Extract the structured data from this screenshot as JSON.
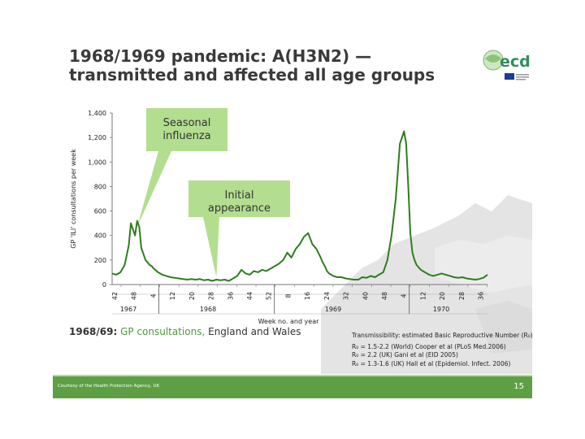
{
  "slide": {
    "title_line1": "1968/1969 pandemic: A(H3N2) —",
    "title_line2": "transmitted and affected all age groups",
    "logo_text": "ecdc",
    "caption_part1": "1968/69:",
    "caption_part2": " GP consultations,",
    "caption_part3": " England and Wales",
    "transmissibility_heading": "Transmissibility: estimated Basic Reproductive Number (R₀)",
    "transmissibility_lines": [
      "R₀ = 1.5-2.2 (World) Cooper et al (PLoS Med.2006)",
      "R₀ = 2.2 (UK) Gani et al (EID 2005)",
      "R₀ = 1.3-1.6 (UK) Hall et al (Epidemiol. Infect. 2006)"
    ],
    "footer_left": "Courtesy of the Health Protection Agency, UK",
    "page_number": "15",
    "colors": {
      "green": "#5da044",
      "line": "#2e7d1e",
      "callout": "#b3de8f"
    }
  },
  "chart_data": {
    "type": "line",
    "ylabel": "GP 'ILI' consultations per week",
    "xlabel": "Week no. and year",
    "ylim": [
      0,
      1400
    ],
    "yticks": [
      "0",
      "200",
      "400",
      "600",
      "800",
      "1,000",
      "1,200",
      "1,400"
    ],
    "ytick_values": [
      0,
      200,
      400,
      600,
      800,
      1000,
      1200,
      1400
    ],
    "xticks": [
      "42",
      "48",
      "4",
      "12",
      "20",
      "28",
      "36",
      "44",
      "52",
      "8",
      "16",
      "24",
      "32",
      "40",
      "48",
      "4",
      "12",
      "20",
      "28",
      "36"
    ],
    "years": [
      {
        "label": "1967",
        "at_week": 0
      },
      {
        "label": "1968",
        "at_week": 40
      },
      {
        "label": "1969",
        "at_week": 92
      },
      {
        "label": "1970",
        "at_week": 144
      }
    ],
    "year_dividers_after_tick": [
      2,
      8,
      15
    ],
    "annotations": [
      {
        "line1": "Seasonal",
        "line2": "influenza",
        "points_to_week": 12
      },
      {
        "line1": "Initial",
        "line2": "appearance",
        "points_to_week": 50
      }
    ],
    "series": [
      {
        "x": [
          0,
          2,
          4,
          6,
          8,
          9,
          10,
          11,
          12,
          13,
          14,
          15,
          16,
          17,
          18,
          19,
          20,
          22,
          24,
          26,
          28,
          30,
          32,
          34,
          36,
          38,
          40,
          42,
          44,
          46,
          48,
          50,
          52,
          54,
          56,
          58,
          60,
          62,
          64,
          66,
          68,
          70,
          72,
          74,
          76,
          78,
          80,
          82,
          84,
          86,
          88,
          90,
          92,
          94,
          96,
          98,
          100,
          101,
          102,
          103,
          104,
          105,
          106,
          108,
          110,
          112,
          114,
          116,
          118,
          120,
          122,
          124,
          126,
          128,
          130,
          132,
          134,
          136,
          138,
          140,
          141,
          142,
          143,
          144,
          145,
          146,
          147,
          148,
          150,
          152,
          154,
          156,
          158,
          160,
          162,
          164,
          166,
          168,
          170,
          172,
          174,
          176,
          178,
          180
        ],
        "y": [
          90,
          80,
          100,
          160,
          320,
          500,
          450,
          400,
          520,
          470,
          300,
          250,
          200,
          180,
          160,
          150,
          130,
          100,
          80,
          70,
          60,
          55,
          50,
          45,
          40,
          45,
          40,
          45,
          35,
          40,
          30,
          40,
          35,
          40,
          30,
          50,
          70,
          120,
          90,
          80,
          110,
          100,
          120,
          110,
          130,
          150,
          170,
          200,
          260,
          220,
          290,
          330,
          390,
          420,
          330,
          290,
          220,
          180,
          150,
          110,
          90,
          80,
          70,
          60,
          60,
          50,
          45,
          40,
          40,
          60,
          55,
          70,
          60,
          80,
          100,
          200,
          400,
          700,
          1150,
          1250,
          1150,
          800,
          420,
          260,
          200,
          160,
          140,
          120,
          100,
          80,
          70,
          80,
          90,
          80,
          70,
          60,
          55,
          60,
          50,
          45,
          40,
          45,
          55,
          80
        ]
      }
    ]
  }
}
